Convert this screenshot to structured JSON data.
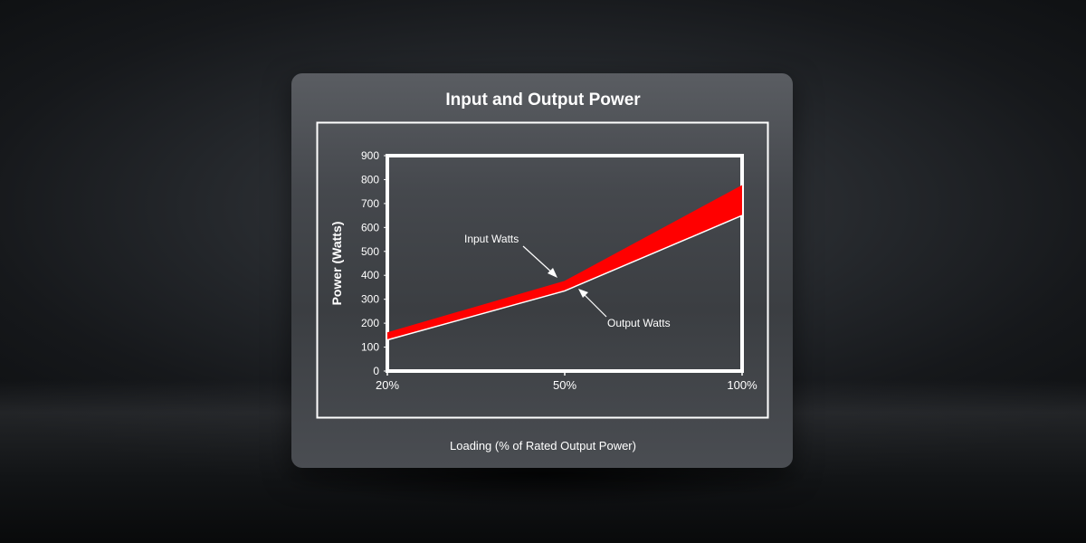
{
  "chart_data": {
    "type": "area",
    "title": "Input and Output Power",
    "xlabel": "Loading (% of Rated Output Power)",
    "ylabel": "Power (Watts)",
    "categories": [
      "20%",
      "50%",
      "100%"
    ],
    "ylim": [
      0,
      900
    ],
    "yticks": [
      0,
      100,
      200,
      300,
      400,
      500,
      600,
      700,
      800,
      900
    ],
    "series": [
      {
        "name": "Input Watts",
        "values": [
          160,
          375,
          775
        ]
      },
      {
        "name": "Output Watts",
        "values": [
          130,
          335,
          650
        ]
      }
    ],
    "annotations": [
      {
        "text": "Input Watts",
        "points_to": "50%"
      },
      {
        "text": "Output Watts",
        "points_to": "50%"
      }
    ],
    "colors": {
      "band": "#ff0000",
      "axes": "#ffffff",
      "text": "#ffffff"
    },
    "grid": false
  }
}
